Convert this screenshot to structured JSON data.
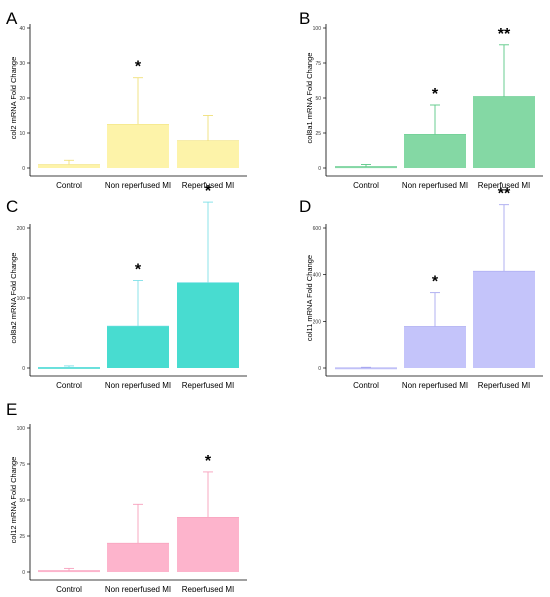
{
  "chart_data": [
    {
      "panel": "A",
      "type": "bar",
      "ylabel": "col2 mRNA Fold Change",
      "categories": [
        "Control",
        "Non reperfused MI",
        "Reperfused MI"
      ],
      "values": [
        1.0,
        12.5,
        7.8
      ],
      "errors": [
        1.2,
        13.3,
        7.2
      ],
      "annotations": [
        "",
        "*",
        ""
      ],
      "ylim": [
        0,
        40
      ],
      "yticks": [
        0,
        10,
        20,
        30,
        40
      ],
      "color": "#fdf3a9",
      "error_color": "#f0e07a"
    },
    {
      "panel": "B",
      "type": "bar",
      "ylabel": "col8a1 mRNA Fold Change",
      "categories": [
        "Control",
        "Non reperfused MI",
        "Reperfused MI"
      ],
      "values": [
        1.0,
        24.0,
        51.0
      ],
      "errors": [
        1.5,
        21.0,
        37.0
      ],
      "annotations": [
        "",
        "*",
        "**"
      ],
      "ylim": [
        0,
        100
      ],
      "yticks": [
        0,
        25,
        50,
        75,
        100
      ],
      "color": "#84d8a4",
      "error_color": "#5ac886"
    },
    {
      "panel": "C",
      "type": "bar",
      "ylabel": "col8a2 mRNA Fold Change",
      "categories": [
        "Control",
        "Non reperfused MI",
        "Reperfused MI"
      ],
      "values": [
        1.0,
        60.0,
        122.0
      ],
      "errors": [
        2.0,
        65.0,
        115.0
      ],
      "annotations": [
        "",
        "*",
        "*"
      ],
      "ylim": [
        0,
        200
      ],
      "yticks": [
        0,
        100,
        200
      ],
      "color": "#48dcd0",
      "error_color": "#7fe0e8"
    },
    {
      "panel": "D",
      "type": "bar",
      "ylabel": "col11 mRNA Fold Change",
      "categories": [
        "Control",
        "Non reperfused MI",
        "Reperfused MI"
      ],
      "values": [
        1.0,
        178.0,
        415.0
      ],
      "errors": [
        2.0,
        145.0,
        285.0
      ],
      "annotations": [
        "",
        "*",
        "**"
      ],
      "ylim": [
        0,
        600
      ],
      "yticks": [
        0,
        200,
        400,
        600
      ],
      "color": "#c4c4fa",
      "error_color": "#a9a9f0"
    },
    {
      "panel": "E",
      "type": "bar",
      "ylabel": "col12 mRNA Fold Change",
      "categories": [
        "Control",
        "Non reperfused MI",
        "Reperfused MI"
      ],
      "values": [
        1.0,
        20.0,
        38.0
      ],
      "errors": [
        1.5,
        27.0,
        31.5
      ],
      "annotations": [
        "",
        "",
        "*"
      ],
      "ylim": [
        0,
        100
      ],
      "yticks": [
        0,
        25,
        50,
        75,
        100
      ],
      "color": "#fdb4cc",
      "error_color": "#f7a0bc"
    }
  ]
}
